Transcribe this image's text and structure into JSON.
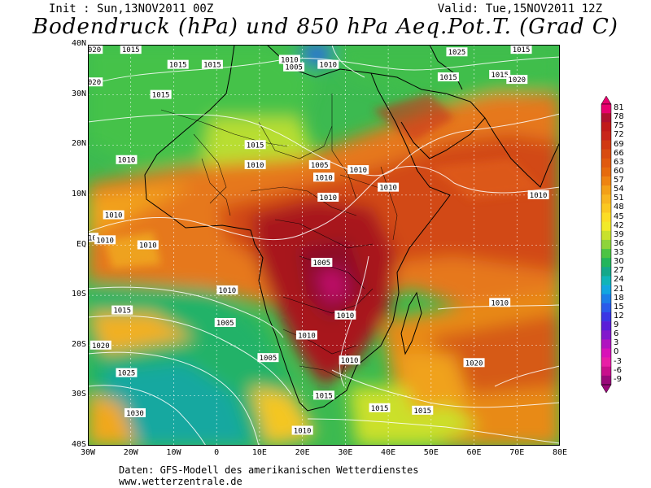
{
  "header": {
    "init": "Init : Sun,13NOV2011 00Z",
    "valid": "Valid: Tue,15NOV2011 12Z",
    "title": "Bodendruck (hPa) und 850 hPa Aeq.Pot.T. (Grad C)"
  },
  "axes": {
    "lat_labels": [
      "40N",
      "30N",
      "20N",
      "10N",
      "EQ",
      "10S",
      "20S",
      "30S",
      "40S"
    ],
    "lon_labels": [
      "30W",
      "20W",
      "10W",
      "0",
      "10E",
      "20E",
      "30E",
      "40E",
      "50E",
      "60E",
      "70E",
      "80E"
    ]
  },
  "isobar_labels": [
    {
      "text": "1020",
      "lon": -29,
      "lat": 39
    },
    {
      "text": "1015",
      "lon": -20,
      "lat": 39
    },
    {
      "text": "1015",
      "lon": -9,
      "lat": 36
    },
    {
      "text": "1015",
      "lon": -1,
      "lat": 36
    },
    {
      "text": "1010",
      "lon": 17,
      "lat": 37
    },
    {
      "text": "1005",
      "lon": 18,
      "lat": 35.5
    },
    {
      "text": "1010",
      "lon": 26,
      "lat": 36
    },
    {
      "text": "1025",
      "lon": 56,
      "lat": 38.5
    },
    {
      "text": "1015",
      "lon": 71,
      "lat": 39
    },
    {
      "text": "1015",
      "lon": 54,
      "lat": 33.5
    },
    {
      "text": "1015",
      "lon": 66,
      "lat": 34
    },
    {
      "text": "1020",
      "lon": 70,
      "lat": 33
    },
    {
      "text": "1020",
      "lon": -29,
      "lat": 32.5
    },
    {
      "text": "1015",
      "lon": -13,
      "lat": 30
    },
    {
      "text": "1015",
      "lon": 9,
      "lat": 20
    },
    {
      "text": "1010",
      "lon": -21,
      "lat": 17
    },
    {
      "text": "1010",
      "lon": 9,
      "lat": 16
    },
    {
      "text": "1005",
      "lon": 24,
      "lat": 16
    },
    {
      "text": "1010",
      "lon": 25,
      "lat": 13.5
    },
    {
      "text": "1010",
      "lon": 33,
      "lat": 15
    },
    {
      "text": "1010",
      "lon": 40,
      "lat": 11.5
    },
    {
      "text": "1010",
      "lon": 26,
      "lat": 9.5
    },
    {
      "text": "1010",
      "lon": 75,
      "lat": 10
    },
    {
      "text": "1010",
      "lon": -24,
      "lat": 6
    },
    {
      "text": "1010",
      "lon": -30,
      "lat": 1.5
    },
    {
      "text": "1010",
      "lon": -26,
      "lat": 1
    },
    {
      "text": "1010",
      "lon": -16,
      "lat": 0
    },
    {
      "text": "1005",
      "lon": 24.5,
      "lat": -3.5
    },
    {
      "text": "1010",
      "lon": 2.5,
      "lat": -9
    },
    {
      "text": "1015",
      "lon": -22,
      "lat": -13
    },
    {
      "text": "1010",
      "lon": 66,
      "lat": -11.5
    },
    {
      "text": "1010",
      "lon": 30,
      "lat": -14
    },
    {
      "text": "1005",
      "lon": 2,
      "lat": -15.5
    },
    {
      "text": "1010",
      "lon": 21,
      "lat": -18
    },
    {
      "text": "1020",
      "lon": -27,
      "lat": -20
    },
    {
      "text": "1005",
      "lon": 12,
      "lat": -22.5
    },
    {
      "text": "1010",
      "lon": 31,
      "lat": -23
    },
    {
      "text": "1020",
      "lon": 60,
      "lat": -23.5
    },
    {
      "text": "1025",
      "lon": -21,
      "lat": -25.5
    },
    {
      "text": "1015",
      "lon": 25,
      "lat": -30
    },
    {
      "text": "1015",
      "lon": 38,
      "lat": -32.5
    },
    {
      "text": "1015",
      "lon": 48,
      "lat": -33
    },
    {
      "text": "1030",
      "lon": -19,
      "lat": -33.5
    },
    {
      "text": "1010",
      "lon": 20,
      "lat": -37
    }
  ],
  "legend": {
    "values": [
      "81",
      "78",
      "75",
      "72",
      "69",
      "66",
      "63",
      "60",
      "57",
      "54",
      "51",
      "48",
      "45",
      "42",
      "39",
      "36",
      "33",
      "30",
      "27",
      "24",
      "21",
      "18",
      "15",
      "12",
      "9",
      "6",
      "3",
      "0",
      "-3",
      "-6",
      "-9"
    ],
    "colors": [
      "#e8006e",
      "#b01030",
      "#c01a1a",
      "#c8261a",
      "#d13a12",
      "#d84c10",
      "#e05a0e",
      "#e66b0d",
      "#ee8412",
      "#f3a018",
      "#f8b520",
      "#fbc821",
      "#fcdd24",
      "#f2ea28",
      "#c8e12c",
      "#8ed43a",
      "#4cc444",
      "#22b55c",
      "#14a88a",
      "#10b4b8",
      "#12a6e0",
      "#1c7ee8",
      "#2a5aea",
      "#3b36e4",
      "#5a1ed8",
      "#8218cc",
      "#b014c0",
      "#d812b8",
      "#e81ea6",
      "#c8108c",
      "#9a0a7a"
    ]
  },
  "footer": {
    "line1": "Daten: GFS-Modell des amerikanischen Wetterdienstes",
    "line2": "www.wetterzentrale.de"
  }
}
